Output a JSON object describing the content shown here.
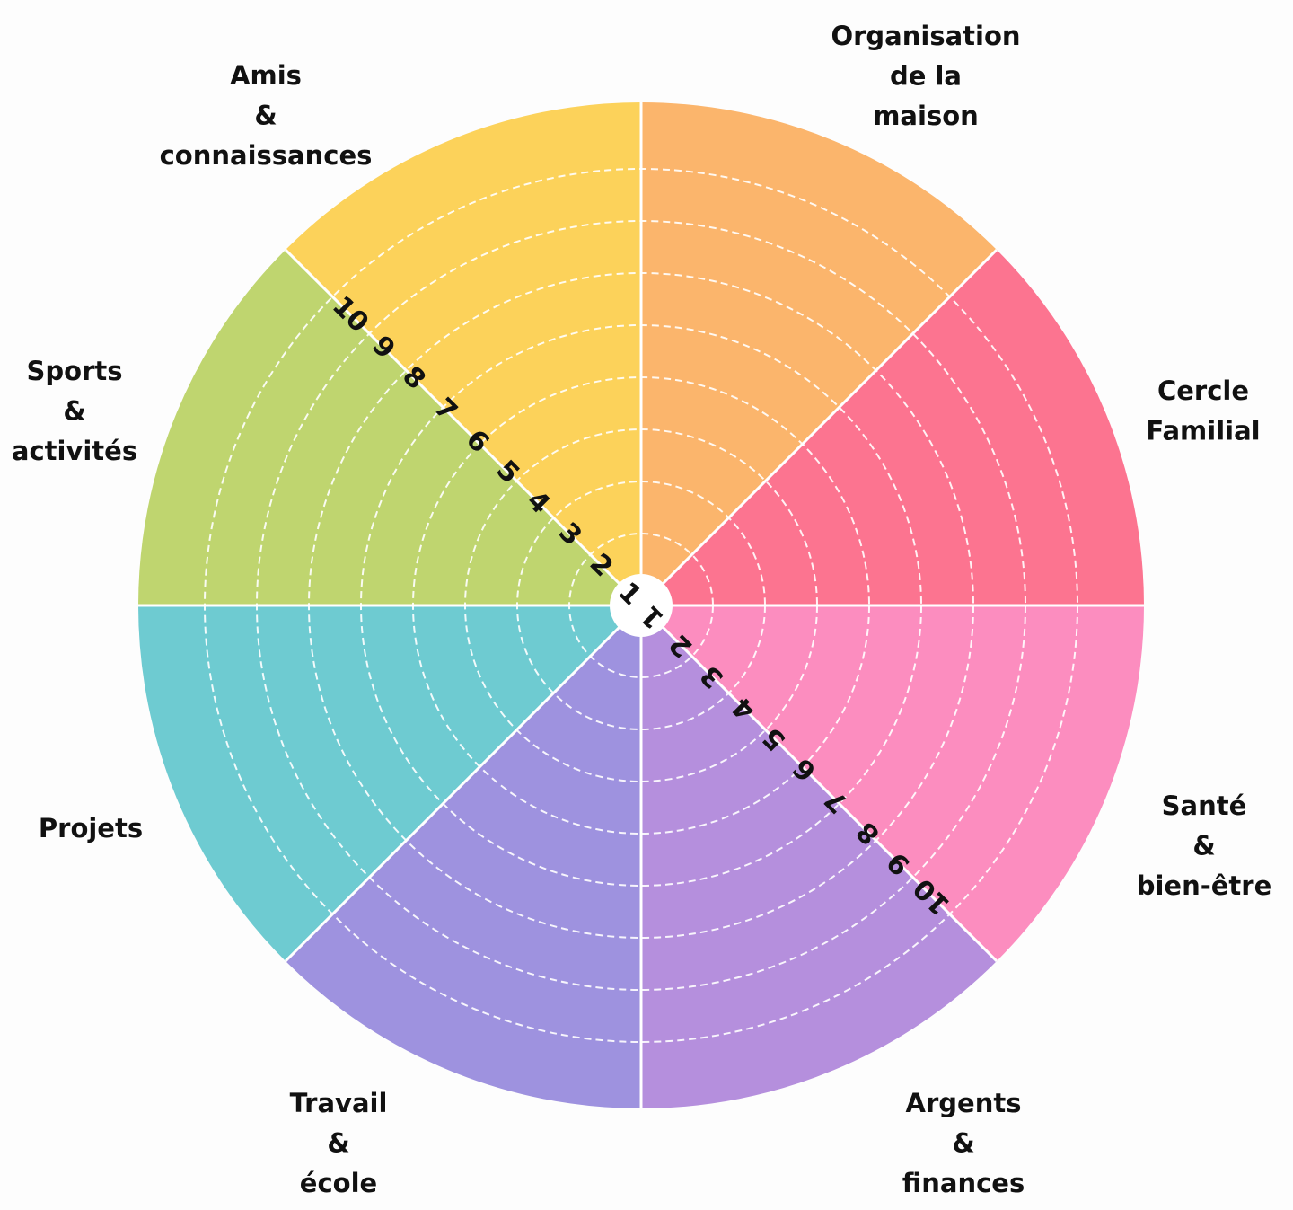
{
  "wheel": {
    "segments": [
      {
        "id": "organisation",
        "label_lines": [
          "Organisation",
          "de la",
          "maison"
        ],
        "color": "#FBB56C"
      },
      {
        "id": "cercle-familial",
        "label_lines": [
          "Cercle",
          "Familial"
        ],
        "color": "#FC7490"
      },
      {
        "id": "sante",
        "label_lines": [
          "Santé",
          "&",
          "bien-être"
        ],
        "color": "#FC8DBF"
      },
      {
        "id": "argents",
        "label_lines": [
          "Argents",
          "&",
          "finances"
        ],
        "color": "#B58FDD"
      },
      {
        "id": "travail",
        "label_lines": [
          "Travail",
          "&",
          "école"
        ],
        "color": "#9E92DF"
      },
      {
        "id": "projets",
        "label_lines": [
          "Projets"
        ],
        "color": "#6ECBD1"
      },
      {
        "id": "sports",
        "label_lines": [
          "Sports",
          "&",
          "activités"
        ],
        "color": "#BFD56F"
      },
      {
        "id": "amis",
        "label_lines": [
          "Amis",
          "&",
          "connaissances"
        ],
        "color": "#FCD25A"
      }
    ],
    "scale": [
      "1",
      "2",
      "3",
      "4",
      "5",
      "6",
      "7",
      "8",
      "9",
      "10"
    ],
    "divider_color": "#FFFFFF",
    "ring_line_color": "#FFFFFF",
    "background": "#FDFDFD"
  }
}
